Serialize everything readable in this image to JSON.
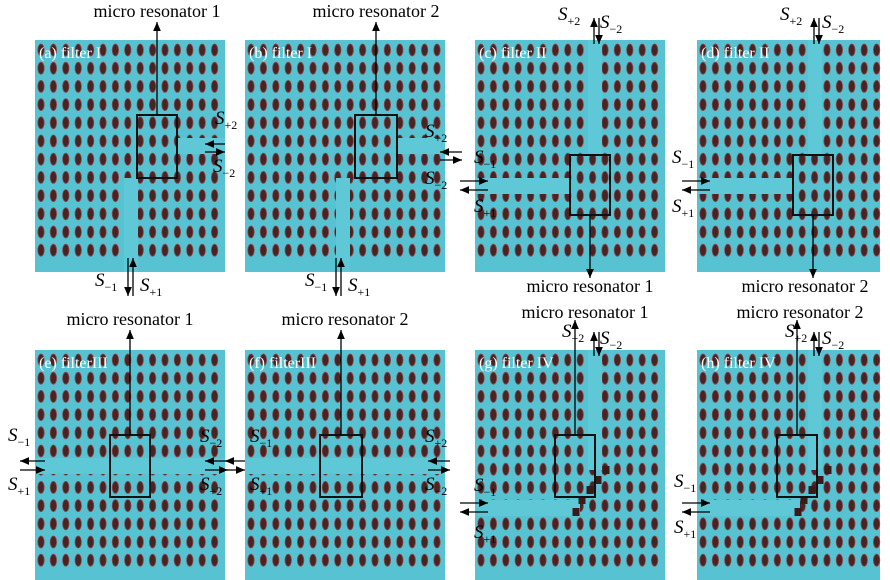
{
  "panels": [
    {
      "label": "(a) filter I",
      "resonator": "micro resonator 1",
      "ports": [
        {
          "symbol": "S",
          "sub": "+2"
        },
        {
          "symbol": "S",
          "sub": "−2"
        },
        {
          "symbol": "S",
          "sub": "−1"
        },
        {
          "symbol": "S",
          "sub": "+1"
        }
      ]
    },
    {
      "label": "(b) filter I",
      "resonator": "micro resonator 2",
      "ports": [
        {
          "symbol": "S",
          "sub": "+2"
        },
        {
          "symbol": "S",
          "sub": "−2"
        },
        {
          "symbol": "S",
          "sub": "−1"
        },
        {
          "symbol": "S",
          "sub": "+1"
        }
      ]
    },
    {
      "label": "(c) filter II",
      "resonator": "micro resonator 1",
      "ports": [
        {
          "symbol": "S",
          "sub": "+2"
        },
        {
          "symbol": "S",
          "sub": "−2"
        },
        {
          "symbol": "S",
          "sub": "−1"
        },
        {
          "symbol": "S",
          "sub": "+1"
        }
      ]
    },
    {
      "label": "(d) filter II",
      "resonator": "micro resonator 2",
      "ports": [
        {
          "symbol": "S",
          "sub": "+2"
        },
        {
          "symbol": "S",
          "sub": "−2"
        },
        {
          "symbol": "S",
          "sub": "−1"
        },
        {
          "symbol": "S",
          "sub": "+1"
        }
      ]
    },
    {
      "label": "(e) filterIII",
      "resonator": "micro resonator 1",
      "ports": [
        {
          "symbol": "S",
          "sub": "−1"
        },
        {
          "symbol": "S",
          "sub": "+1"
        },
        {
          "symbol": "S",
          "sub": "−2"
        },
        {
          "symbol": "S",
          "sub": "+2"
        }
      ]
    },
    {
      "label": "(f) filterIII",
      "resonator": "micro resonator 2",
      "ports": [
        {
          "symbol": "S",
          "sub": "−1"
        },
        {
          "symbol": "S",
          "sub": "+1"
        },
        {
          "symbol": "S",
          "sub": "+2"
        },
        {
          "symbol": "S",
          "sub": "−2"
        }
      ]
    },
    {
      "label": "(g) filter IV",
      "resonator": "micro resonator 1",
      "ports": [
        {
          "symbol": "S",
          "sub": "+2"
        },
        {
          "symbol": "S",
          "sub": "−2"
        },
        {
          "symbol": "S",
          "sub": "−1"
        },
        {
          "symbol": "S",
          "sub": "+1"
        }
      ]
    },
    {
      "label": "(h) filter IV",
      "resonator": "micro resonator 2",
      "ports": [
        {
          "symbol": "S",
          "sub": "+2"
        },
        {
          "symbol": "S",
          "sub": "−2"
        },
        {
          "symbol": "S",
          "sub": "−1"
        },
        {
          "symbol": "S",
          "sub": "+1"
        }
      ]
    }
  ]
}
